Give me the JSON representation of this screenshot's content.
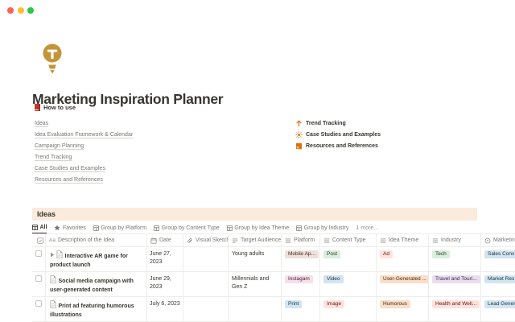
{
  "window": {
    "controls": {
      "close_color": "#FF5F57",
      "minimize_color": "#FEBC2E",
      "zoom_color": "#28C840"
    }
  },
  "page": {
    "icon": "lightbulb-icon",
    "icon_color": "#C2953A",
    "title": "Marketing Inspiration Planner",
    "how_to_use_label": "How to use",
    "nav_links": [
      "Ideas",
      "Idea Evaluation Framework & Calendar",
      "Campaign Planning",
      "Trend Tracking",
      "Case Studies and Examples",
      "Resources and References"
    ],
    "quick_links": [
      {
        "icon": "trend-up-icon",
        "label": "Trend Tracking"
      },
      {
        "icon": "sun-icon",
        "label": "Case Studies and Examples"
      },
      {
        "icon": "orange-book-icon",
        "label": "Resources and References"
      }
    ],
    "accent_orange": "#D9730D"
  },
  "ideas_section": {
    "banner_title": "Ideas",
    "banner_bg": "#FAEBDD",
    "tabs": [
      {
        "icon": "table-icon",
        "label": "All",
        "active": true
      },
      {
        "icon": "star-icon",
        "label": "Favorites",
        "active": false
      },
      {
        "icon": "table-icon",
        "label": "Group by Platform",
        "active": false
      },
      {
        "icon": "table-icon",
        "label": "Group by Content Type",
        "active": false
      },
      {
        "icon": "table-icon",
        "label": "Group by Idea Theme",
        "active": false
      },
      {
        "icon": "table-icon",
        "label": "Group by Industry",
        "active": false
      }
    ],
    "more_label": "1 more..."
  },
  "table": {
    "columns": [
      {
        "key": "check",
        "label": "",
        "icon": "checkbox-icon"
      },
      {
        "key": "description",
        "label": "Description of the Idea",
        "icon": "title-icon"
      },
      {
        "key": "date",
        "label": "Date",
        "icon": "calendar-icon"
      },
      {
        "key": "visual_sketch",
        "label": "Visual Sketch",
        "icon": "paperclip-icon"
      },
      {
        "key": "target_audience",
        "label": "Target Audience",
        "icon": "text-icon"
      },
      {
        "key": "platform",
        "label": "Platform",
        "icon": "select-icon"
      },
      {
        "key": "content_type",
        "label": "Content Type",
        "icon": "select-icon"
      },
      {
        "key": "idea_theme",
        "label": "Idea Theme",
        "icon": "select-icon"
      },
      {
        "key": "industry",
        "label": "Industry",
        "icon": "select-icon"
      },
      {
        "key": "marketing_goal",
        "label": "Marketing",
        "icon": "status-icon"
      }
    ],
    "rows": [
      {
        "has_toggle": true,
        "description": "Interactive AR game for product launch",
        "date": "June 27, 2023",
        "visual_sketch": "",
        "target_audience": "Young adults",
        "platform": [
          {
            "label": "Mobile Ap...",
            "color": "brown"
          }
        ],
        "content_type": [
          {
            "label": "Post",
            "color": "green"
          }
        ],
        "idea_theme": [
          {
            "label": "Ad",
            "color": "red"
          }
        ],
        "industry": [
          {
            "label": "Tech",
            "color": "green"
          }
        ],
        "marketing_goal": [
          {
            "label": "Sales Conv",
            "color": "blue"
          }
        ]
      },
      {
        "has_toggle": false,
        "description": "Social media campaign with user-generated content",
        "date": "June 29, 2023",
        "visual_sketch": "",
        "target_audience": "Millennials and Gen Z",
        "platform": [
          {
            "label": "Instagam",
            "color": "pink"
          }
        ],
        "content_type": [
          {
            "label": "Video",
            "color": "blue"
          }
        ],
        "idea_theme": [
          {
            "label": "User-Generated ...",
            "color": "orange"
          }
        ],
        "industry": [
          {
            "label": "Travel and Touri...",
            "color": "purple"
          }
        ],
        "marketing_goal": [
          {
            "label": "Market Res",
            "color": "blue"
          }
        ]
      },
      {
        "has_toggle": false,
        "description": "Print ad featuring humorous illustrations",
        "date": "July 6, 2023",
        "visual_sketch": "",
        "target_audience": "",
        "platform": [
          {
            "label": "Print",
            "color": "blue"
          }
        ],
        "content_type": [
          {
            "label": "Image",
            "color": "red"
          }
        ],
        "idea_theme": [
          {
            "label": "Humorous",
            "color": "orange"
          }
        ],
        "industry": [
          {
            "label": "Health and Well...",
            "color": "red"
          }
        ],
        "marketing_goal": [
          {
            "label": "Lead Gener",
            "color": "blue"
          }
        ]
      }
    ],
    "tag_colors": {
      "brown": {
        "bg": "#EEE0DA",
        "text": "#442A1E"
      },
      "green": {
        "bg": "#DBEDDB",
        "text": "#1C3829"
      },
      "red": {
        "bg": "#FFE2DD",
        "text": "#5D1715"
      },
      "pink": {
        "bg": "#F5E0E9",
        "text": "#4C2337"
      },
      "blue": {
        "bg": "#D3E5EF",
        "text": "#183347"
      },
      "orange": {
        "bg": "#FADEC9",
        "text": "#49290E"
      },
      "purple": {
        "bg": "#E8DEEE",
        "text": "#412454"
      }
    }
  }
}
